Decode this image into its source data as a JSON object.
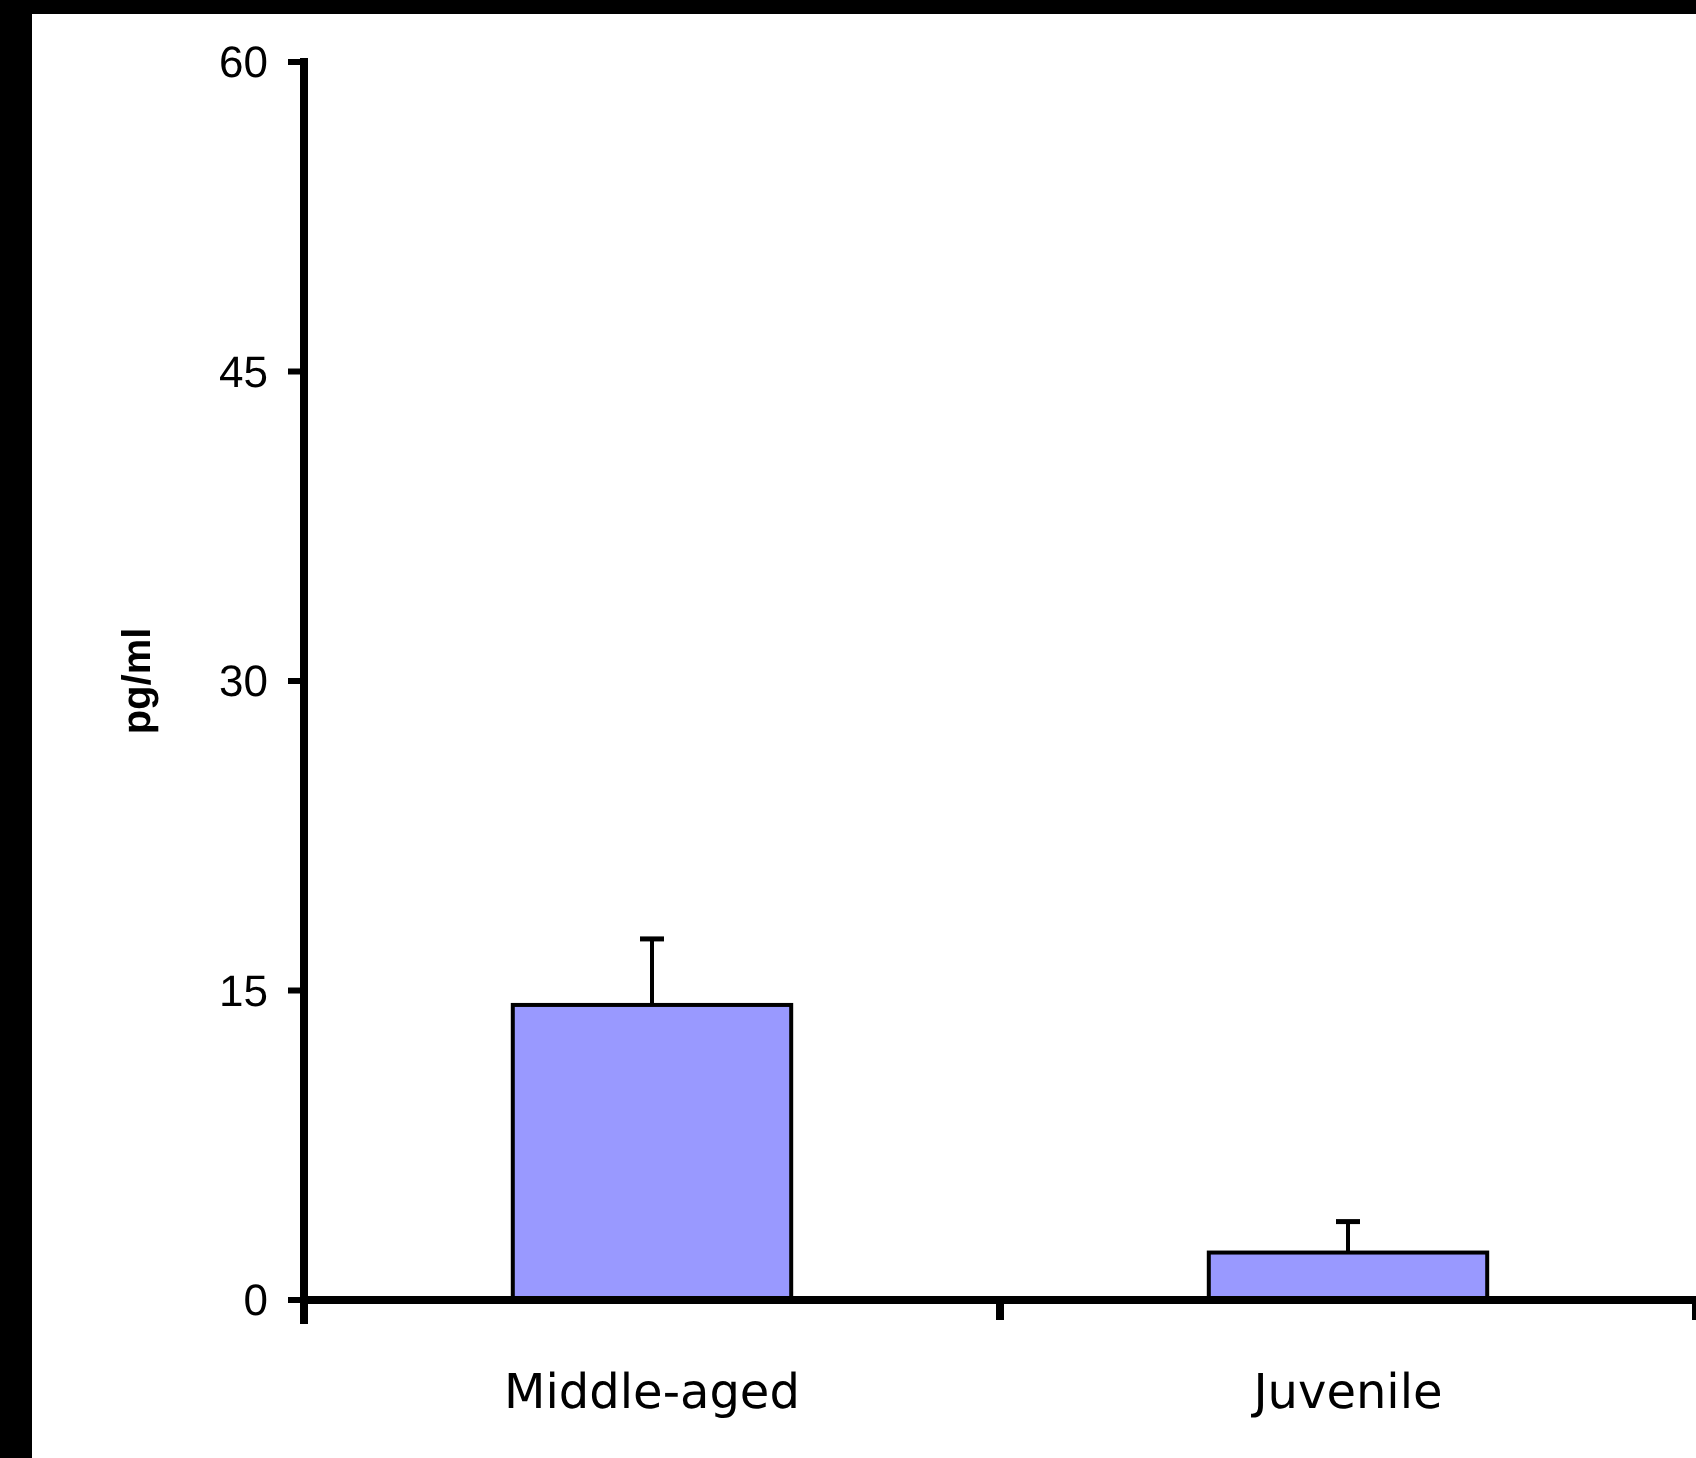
{
  "chart_data": {
    "type": "bar",
    "ylabel": "pg/ml",
    "categories": [
      "Middle-aged",
      "Juvenile"
    ],
    "series": [
      {
        "color": "#9999ff",
        "values": [
          14.3,
          2.3
        ],
        "errors": [
          [
            14.3,
            17.5
          ],
          [
            2.3,
            3.8
          ]
        ]
      }
    ],
    "ylim": [
      0,
      60
    ],
    "yticks": [
      0,
      15,
      30,
      45,
      60
    ]
  }
}
